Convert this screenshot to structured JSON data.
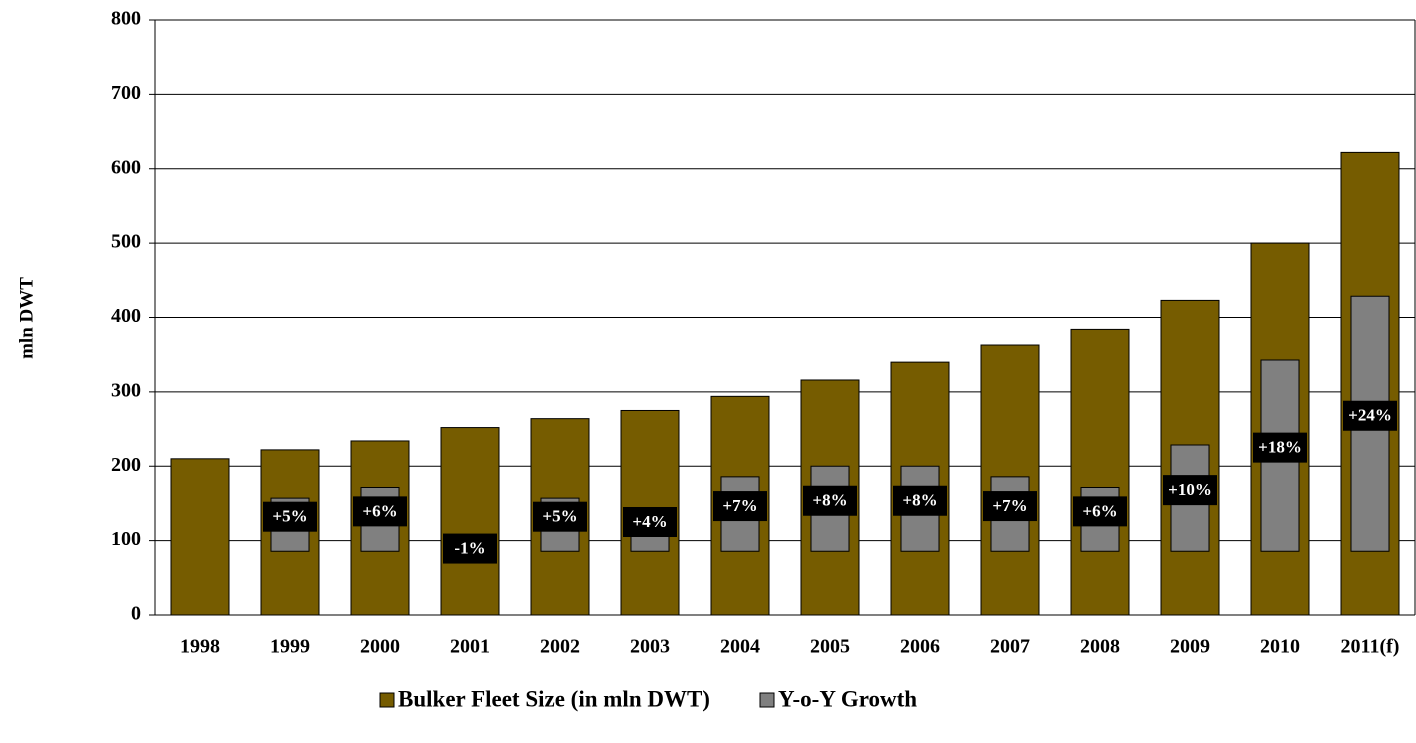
{
  "chart_data": {
    "type": "bar",
    "y_label": "mln DWT",
    "categories": [
      "1998",
      "1999",
      "2000",
      "2001",
      "2002",
      "2003",
      "2004",
      "2005",
      "2006",
      "2007",
      "2008",
      "2009",
      "2010",
      "2011(f)"
    ],
    "series": [
      {
        "name": "Bulker Fleet Size (in mln DWT)",
        "color": "#765c00",
        "values": [
          210,
          222,
          234,
          252,
          264,
          275,
          294,
          316,
          340,
          363,
          384,
          423,
          500,
          622
        ]
      },
      {
        "name": "Y-o-Y Growth",
        "color": "#808080",
        "axis": "y2",
        "values": [
          null,
          5,
          6,
          -1,
          5,
          4,
          7,
          8,
          8,
          7,
          6,
          10,
          18,
          24
        ],
        "value_labels": [
          null,
          "+5%",
          "+6%",
          "-1%",
          "+5%",
          "+4%",
          "+7%",
          "+8%",
          "+8%",
          "+7%",
          "+6%",
          "+10%",
          "+18%",
          "+24%"
        ]
      }
    ],
    "ylim": [
      0,
      800
    ],
    "yticks": [
      0,
      100,
      200,
      300,
      400,
      500,
      600,
      700,
      800
    ],
    "y2lim": [
      -6,
      50
    ],
    "grid": true,
    "legend": "bottom"
  }
}
